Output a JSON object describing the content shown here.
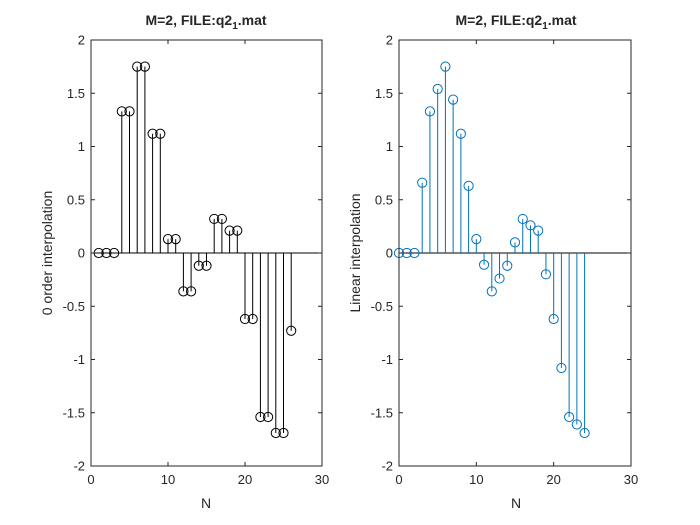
{
  "chart_data": [
    {
      "type": "stem",
      "title": "M=2, FILE:q2",
      "title_subscript": "1",
      "title_suffix": ".mat",
      "xlabel": "N",
      "ylabel": "0 order interpolation",
      "xlim": [
        0,
        30
      ],
      "ylim": [
        -2,
        2
      ],
      "xticks": [
        0,
        10,
        20,
        30
      ],
      "yticks": [
        -2,
        -1.5,
        -1,
        -0.5,
        0,
        0.5,
        1,
        1.5,
        2
      ],
      "color": "#000000",
      "x": [
        1,
        2,
        3,
        4,
        5,
        6,
        7,
        8,
        9,
        10,
        11,
        12,
        13,
        14,
        15,
        16,
        17,
        18,
        19,
        20,
        21,
        22,
        23,
        24,
        25,
        26
      ],
      "y": [
        0,
        0,
        0,
        1.33,
        1.33,
        1.75,
        1.75,
        1.12,
        1.12,
        0.13,
        0.13,
        -0.36,
        -0.36,
        -0.12,
        -0.12,
        0.32,
        0.32,
        0.21,
        0.21,
        -0.62,
        -0.62,
        -1.54,
        -1.54,
        -1.69,
        -1.69,
        -0.73
      ]
    },
    {
      "type": "stem",
      "title": "M=2, FILE:q2",
      "title_subscript": "1",
      "title_suffix": ".mat",
      "xlabel": "N",
      "ylabel": "Linear interpolation",
      "xlim": [
        0,
        30
      ],
      "ylim": [
        -2,
        2
      ],
      "xticks": [
        0,
        10,
        20,
        30
      ],
      "yticks": [
        -2,
        -1.5,
        -1,
        -0.5,
        0,
        0.5,
        1,
        1.5,
        2
      ],
      "color": "#0072BD",
      "x": [
        0,
        1,
        2,
        3,
        4,
        5,
        6,
        7,
        8,
        9,
        10,
        11,
        12,
        13,
        14,
        15,
        16,
        17,
        18,
        19,
        20,
        21,
        22,
        23,
        24
      ],
      "y": [
        0,
        0,
        0,
        0.66,
        1.33,
        1.54,
        1.75,
        1.44,
        1.12,
        0.63,
        0.13,
        -0.11,
        -0.36,
        -0.24,
        -0.12,
        0.1,
        0.32,
        0.26,
        0.21,
        -0.2,
        -0.62,
        -1.08,
        -1.54,
        -1.61,
        -1.69
      ]
    }
  ]
}
